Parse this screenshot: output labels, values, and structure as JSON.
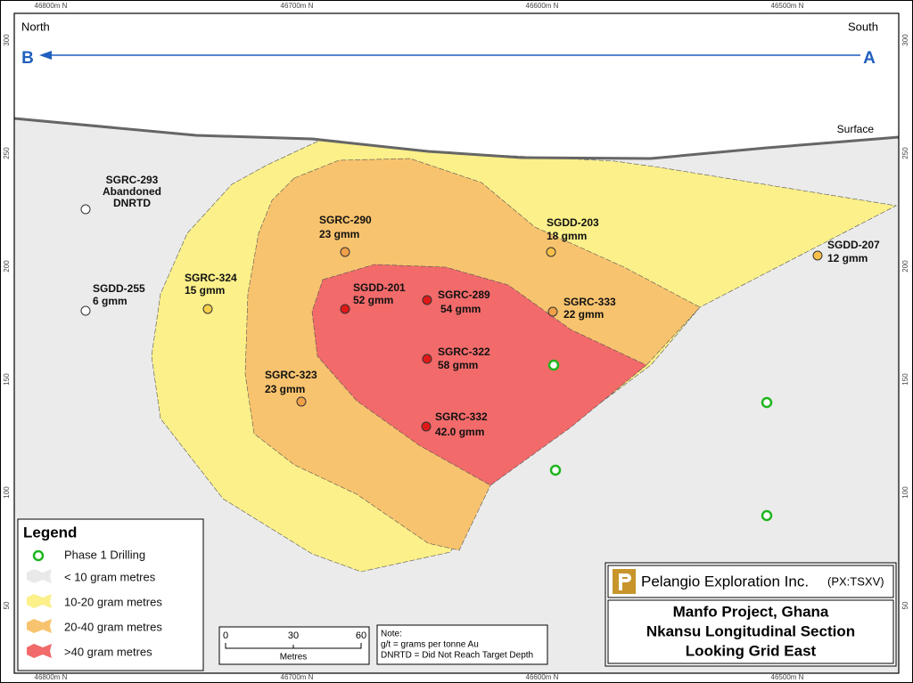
{
  "axes": {
    "x_labels": [
      "46800m N",
      "46700m N",
      "46600m N",
      "46500m N"
    ],
    "y_labels": [
      300,
      250,
      200,
      150,
      100,
      50
    ]
  },
  "map": {
    "north": "North",
    "south": "South",
    "start": "B",
    "end": "A",
    "surface": "Surface"
  },
  "drill_holes": [
    {
      "lines": [
        "SGRC-293",
        "Abandoned",
        "DNRTD"
      ]
    },
    {
      "lines": [
        "SGDD-255",
        "6 gmm"
      ]
    },
    {
      "lines": [
        "SGRC-324",
        "15 gmm"
      ]
    },
    {
      "lines": [
        "SGRC-290",
        "23 gmm"
      ]
    },
    {
      "lines": [
        "SGDD-201",
        "52 gmm"
      ]
    },
    {
      "lines": [
        "SGRC-289",
        "54 gmm"
      ]
    },
    {
      "lines": [
        "SGRC-322",
        "58 gmm"
      ]
    },
    {
      "lines": [
        "SGRC-332",
        "42.0 gmm"
      ]
    },
    {
      "lines": [
        "SGRC-323",
        "23 gmm"
      ]
    },
    {
      "lines": [
        "SGDD-203",
        "18 gmm"
      ]
    },
    {
      "lines": [
        "SGRC-333",
        "22 gmm"
      ]
    },
    {
      "lines": [
        "SGDD-207",
        "12 gmm"
      ]
    }
  ],
  "legend": {
    "title": "Legend",
    "items": [
      "Phase 1 Drilling",
      "< 10 gram metres",
      "10-20 gram metres",
      "20-40 gram metres",
      ">40 gram metres"
    ]
  },
  "scale_bar": {
    "ticks": [
      0,
      30,
      60
    ],
    "unit": "Metres"
  },
  "note": {
    "lines": [
      "Note:",
      "g/t = grams per tonne Au",
      "DNRTD = Did Not Reach Target Depth"
    ]
  },
  "company": {
    "name": "Pelangio Exploration Inc.",
    "ticker": "(PX:TSXV)",
    "title_lines": [
      "Manfo Project, Ghana",
      "Nkansu Longitudinal Section",
      "Looking Grid East"
    ]
  }
}
